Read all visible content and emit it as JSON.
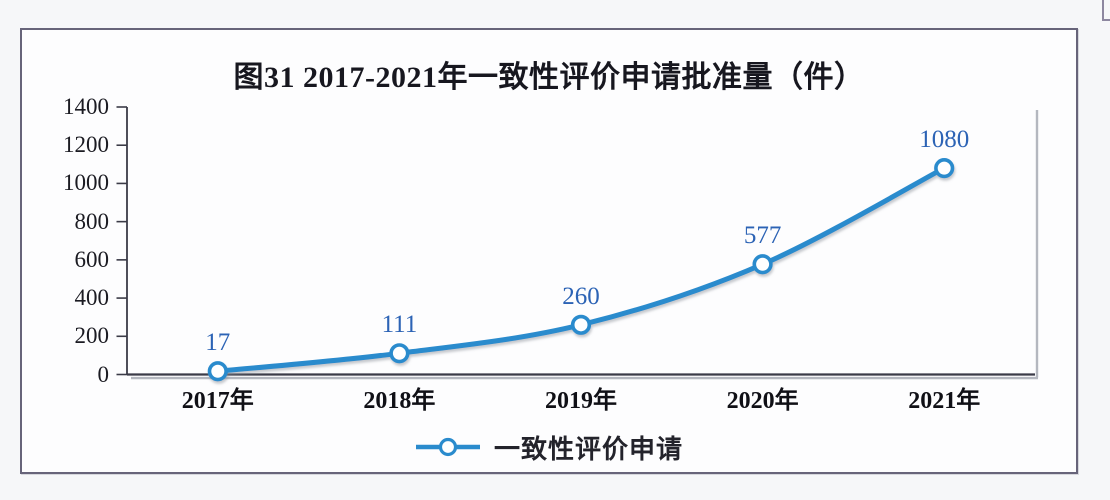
{
  "chart": {
    "title": "图31 2017-2021年一致性评价申请批准量（件）",
    "legend_label": "一致性评价申请"
  },
  "chart_data": {
    "type": "line",
    "title": "图31 2017-2021年一致性评价申请批准量（件）",
    "categories": [
      "2017年",
      "2018年",
      "2019年",
      "2020年",
      "2021年"
    ],
    "series": [
      {
        "name": "一致性评价申请",
        "values": [
          17,
          111,
          260,
          577,
          1080
        ]
      }
    ],
    "data_labels": [
      "17",
      "111",
      "260",
      "577",
      "1080"
    ],
    "ylim": [
      0,
      1400
    ],
    "yticks": [
      0,
      200,
      400,
      600,
      800,
      1000,
      1200,
      1400
    ],
    "grid": false,
    "legend_position": "bottom",
    "line_smoothing": true,
    "marker": "open-circle",
    "colors": {
      "line": "#2a8bcd",
      "marker_fill": "#ffffff",
      "data_label": "#2c63b5",
      "axis": "#3b3b47",
      "axis_shadow": "#b4b7bf",
      "tick_text": "#1b1b22"
    }
  }
}
